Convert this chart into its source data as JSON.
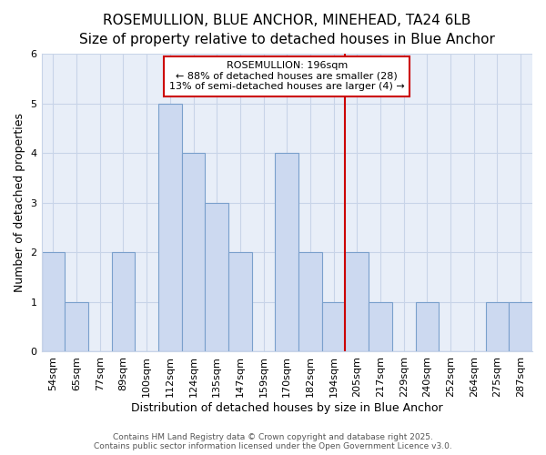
{
  "title": "ROSEMULLION, BLUE ANCHOR, MINEHEAD, TA24 6LB",
  "subtitle": "Size of property relative to detached houses in Blue Anchor",
  "xlabel": "Distribution of detached houses by size in Blue Anchor",
  "ylabel": "Number of detached properties",
  "bar_labels": [
    "54sqm",
    "65sqm",
    "77sqm",
    "89sqm",
    "100sqm",
    "112sqm",
    "124sqm",
    "135sqm",
    "147sqm",
    "159sqm",
    "170sqm",
    "182sqm",
    "194sqm",
    "205sqm",
    "217sqm",
    "229sqm",
    "240sqm",
    "252sqm",
    "264sqm",
    "275sqm",
    "287sqm"
  ],
  "bar_values": [
    2,
    1,
    0,
    2,
    0,
    5,
    4,
    3,
    2,
    0,
    4,
    2,
    1,
    2,
    1,
    0,
    1,
    0,
    0,
    1,
    1
  ],
  "bar_color": "#ccd9f0",
  "bar_edgecolor": "#7aa0cc",
  "grid_color": "#c8d4e8",
  "bg_color": "#ffffff",
  "plot_bg_color": "#e8eef8",
  "vline_x": 12.5,
  "vline_color": "#cc0000",
  "annotation_title": "ROSEMULLION: 196sqm",
  "annotation_line1": "← 88% of detached houses are smaller (28)",
  "annotation_line2": "13% of semi-detached houses are larger (4) →",
  "annotation_box_color": "#cc0000",
  "footer1": "Contains HM Land Registry data © Crown copyright and database right 2025.",
  "footer2": "Contains public sector information licensed under the Open Government Licence v3.0.",
  "ylim": [
    0,
    6
  ],
  "yticks": [
    0,
    1,
    2,
    3,
    4,
    5,
    6
  ],
  "title_fontsize": 11,
  "subtitle_fontsize": 9.5,
  "axis_label_fontsize": 9,
  "tick_fontsize": 8,
  "footer_fontsize": 6.5,
  "annotation_fontsize": 8
}
